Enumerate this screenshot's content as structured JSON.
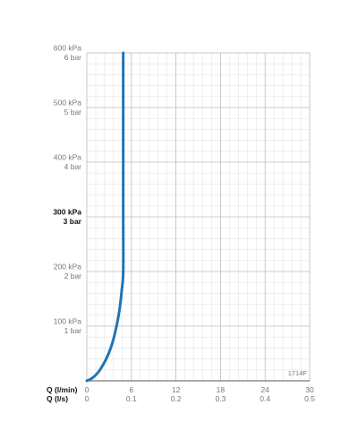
{
  "chart_data": {
    "type": "line",
    "figure_code": "1714F",
    "x_axis_lines": [
      {
        "label": "Q (l/min)",
        "ticks": [
          "0",
          "6",
          "12",
          "18",
          "24",
          "30"
        ]
      },
      {
        "label": "Q (l/s)",
        "ticks": [
          "0",
          "0.1",
          "0.2",
          "0.3",
          "0.4",
          "0.5"
        ]
      }
    ],
    "y_ticks": [
      {
        "value": 600,
        "kpa": "600 kPa",
        "bar": "6 bar",
        "emphasis": false
      },
      {
        "value": 500,
        "kpa": "500 kPa",
        "bar": "5 bar",
        "emphasis": false
      },
      {
        "value": 400,
        "kpa": "400 kPa",
        "bar": "4 bar",
        "emphasis": false
      },
      {
        "value": 300,
        "kpa": "300 kPa",
        "bar": "3 bar",
        "emphasis": true
      },
      {
        "value": 200,
        "kpa": "200 kPa",
        "bar": "2 bar",
        "emphasis": false
      },
      {
        "value": 100,
        "kpa": "100 kPa",
        "bar": "1 bar",
        "emphasis": false
      }
    ],
    "xlim": [
      0,
      30
    ],
    "ylim": [
      0,
      600
    ],
    "x_unit": "l/min",
    "y_unit": "kPa",
    "grid": true,
    "series": [
      {
        "color": "#1f75b4",
        "points": [
          [
            0,
            0
          ],
          [
            0.5,
            3
          ],
          [
            1.0,
            8
          ],
          [
            1.5,
            15
          ],
          [
            2.0,
            25
          ],
          [
            2.5,
            37
          ],
          [
            3.0,
            52
          ],
          [
            3.5,
            72
          ],
          [
            4.0,
            100
          ],
          [
            4.4,
            130
          ],
          [
            4.7,
            165
          ],
          [
            4.9,
            200
          ],
          [
            4.9,
            300
          ],
          [
            4.9,
            400
          ],
          [
            4.9,
            500
          ],
          [
            4.9,
            600
          ]
        ]
      }
    ]
  }
}
